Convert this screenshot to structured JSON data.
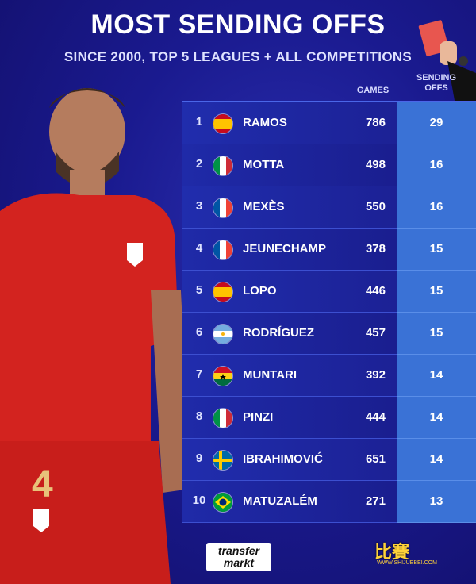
{
  "header": {
    "title": "MOST SENDING OFFS",
    "subtitle": "SINCE 2000, TOP 5 LEAGUES + ALL COMPETITIONS"
  },
  "columns": {
    "games": "GAMES",
    "sending_offs_line1": "SENDING",
    "sending_offs_line2": "OFFS"
  },
  "rows": [
    {
      "rank": "1",
      "flag": "spain-flag",
      "name": "RAMOS",
      "games": "786",
      "offs": "29"
    },
    {
      "rank": "2",
      "flag": "italy-flag",
      "name": "MOTTA",
      "games": "498",
      "offs": "16"
    },
    {
      "rank": "3",
      "flag": "france-flag",
      "name": "MEXÈS",
      "games": "550",
      "offs": "16"
    },
    {
      "rank": "4",
      "flag": "france-flag",
      "name": "JEUNECHAMP",
      "games": "378",
      "offs": "15"
    },
    {
      "rank": "5",
      "flag": "spain-flag",
      "name": "LOPO",
      "games": "446",
      "offs": "15"
    },
    {
      "rank": "6",
      "flag": "argentina-flag",
      "name": "RODRÍGUEZ",
      "games": "457",
      "offs": "15"
    },
    {
      "rank": "7",
      "flag": "ghana-flag",
      "name": "MUNTARI",
      "games": "392",
      "offs": "14"
    },
    {
      "rank": "8",
      "flag": "italy-flag",
      "name": "PINZI",
      "games": "444",
      "offs": "14"
    },
    {
      "rank": "9",
      "flag": "sweden-flag",
      "name": "IBRAHIMOVIĆ",
      "games": "651",
      "offs": "14"
    },
    {
      "rank": "10",
      "flag": "brazil-flag",
      "name": "MATUZALÉM",
      "games": "271",
      "offs": "13"
    }
  ],
  "logo": {
    "line1": "transfer",
    "line2": "markt"
  },
  "watermark": {
    "text": "比賽",
    "sub": "WWW.SHIJUEBEI.COM"
  },
  "colors": {
    "background": "#1a1a8f",
    "row": "#1f2aa8",
    "offs_column": "#3a72d6",
    "jersey": "#d3231f"
  }
}
